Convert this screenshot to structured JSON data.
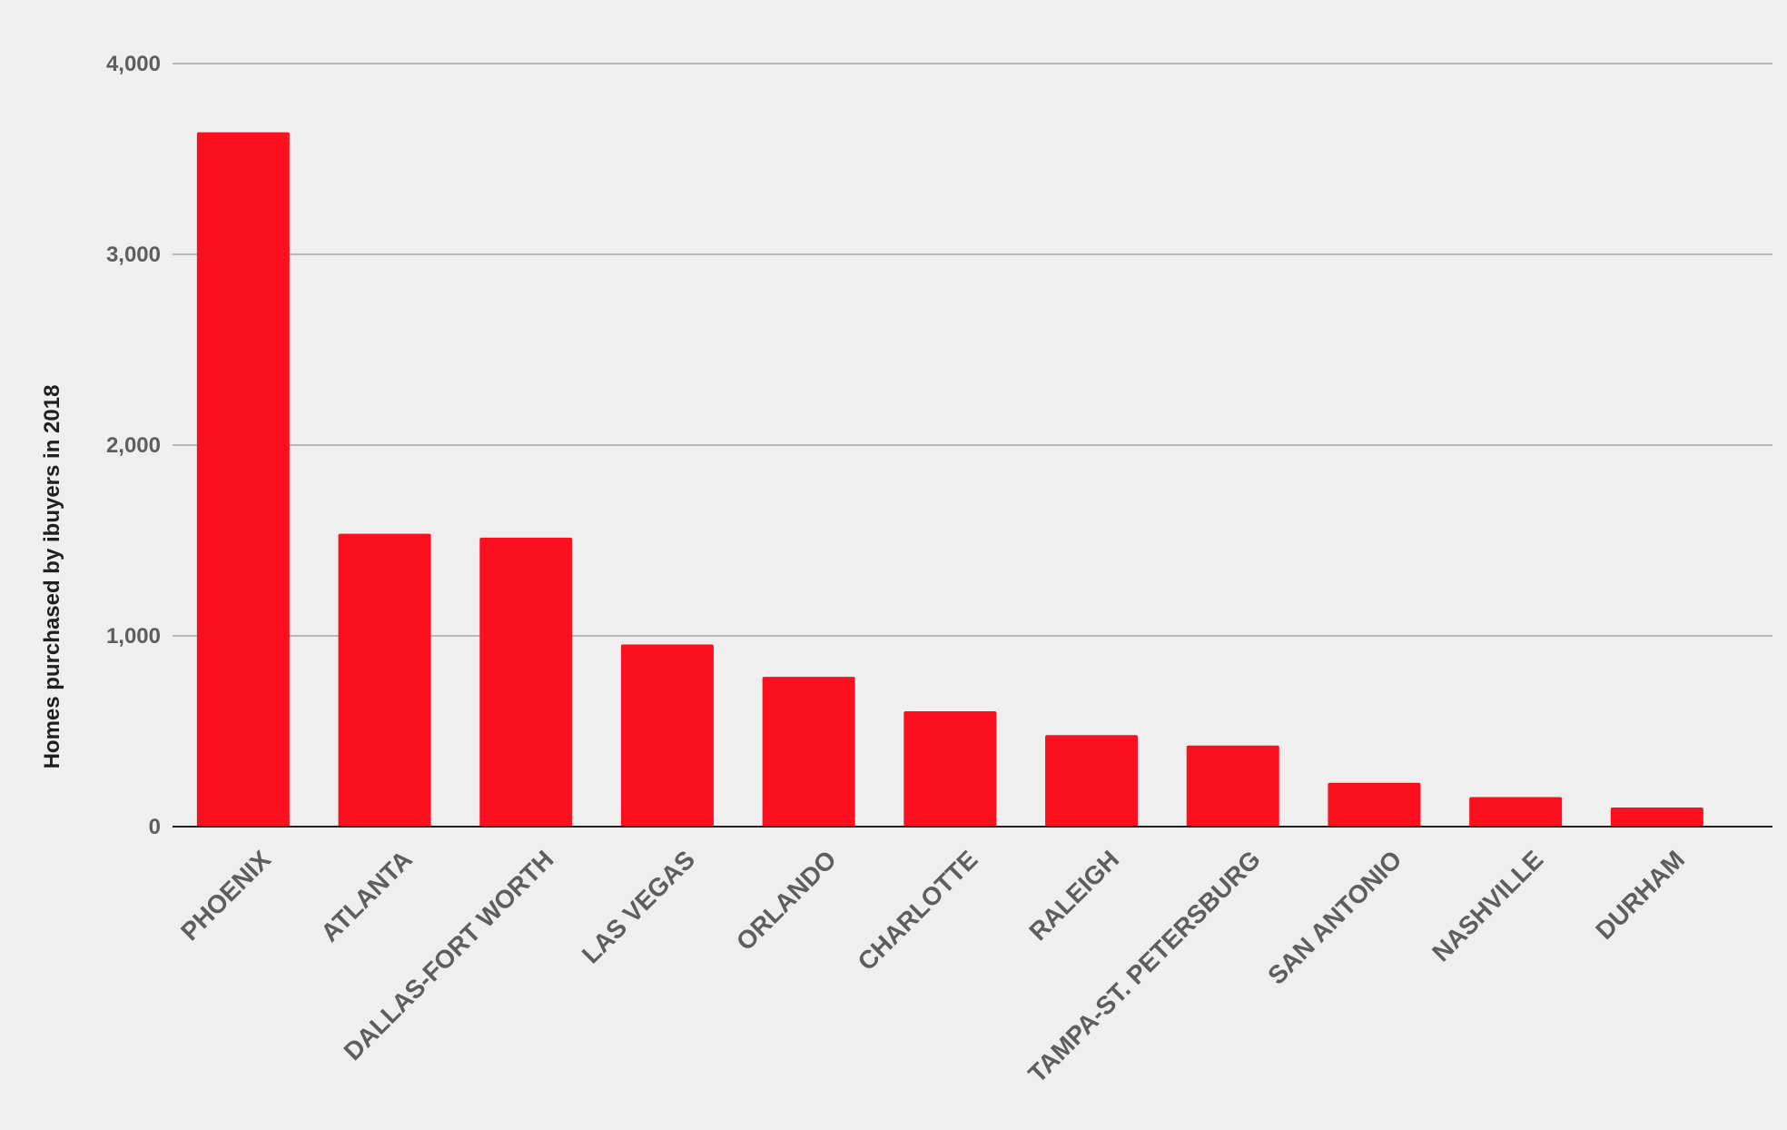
{
  "colors": {
    "background": "#efefef",
    "bar": "#fc1020",
    "gridline": "#b8b8b8",
    "tick_text": "#5e5e5e",
    "axis_title": "#1f1f1f"
  },
  "chart_data": {
    "type": "bar",
    "title": "",
    "xlabel": "",
    "ylabel": "Homes purchased by ibuyers in 2018",
    "ylim": [
      0,
      4000
    ],
    "yticks": [
      0,
      1000,
      2000,
      3000,
      4000
    ],
    "ytick_labels": [
      "0",
      "1,000",
      "2,000",
      "3,000",
      "4,000"
    ],
    "grid": true,
    "legend": "none",
    "categories": [
      "PHOENIX",
      "ATLANTA",
      "DALLAS-FORT WORTH",
      "LAS VEGAS",
      "ORLANDO",
      "CHARLOTTE",
      "RALEIGH",
      "TAMPA-ST. PETERSBURG",
      "SAN ANTONIO",
      "NASHVILLE",
      "DURHAM"
    ],
    "values": [
      3640,
      1535,
      1515,
      955,
      785,
      605,
      480,
      425,
      230,
      155,
      100
    ]
  }
}
